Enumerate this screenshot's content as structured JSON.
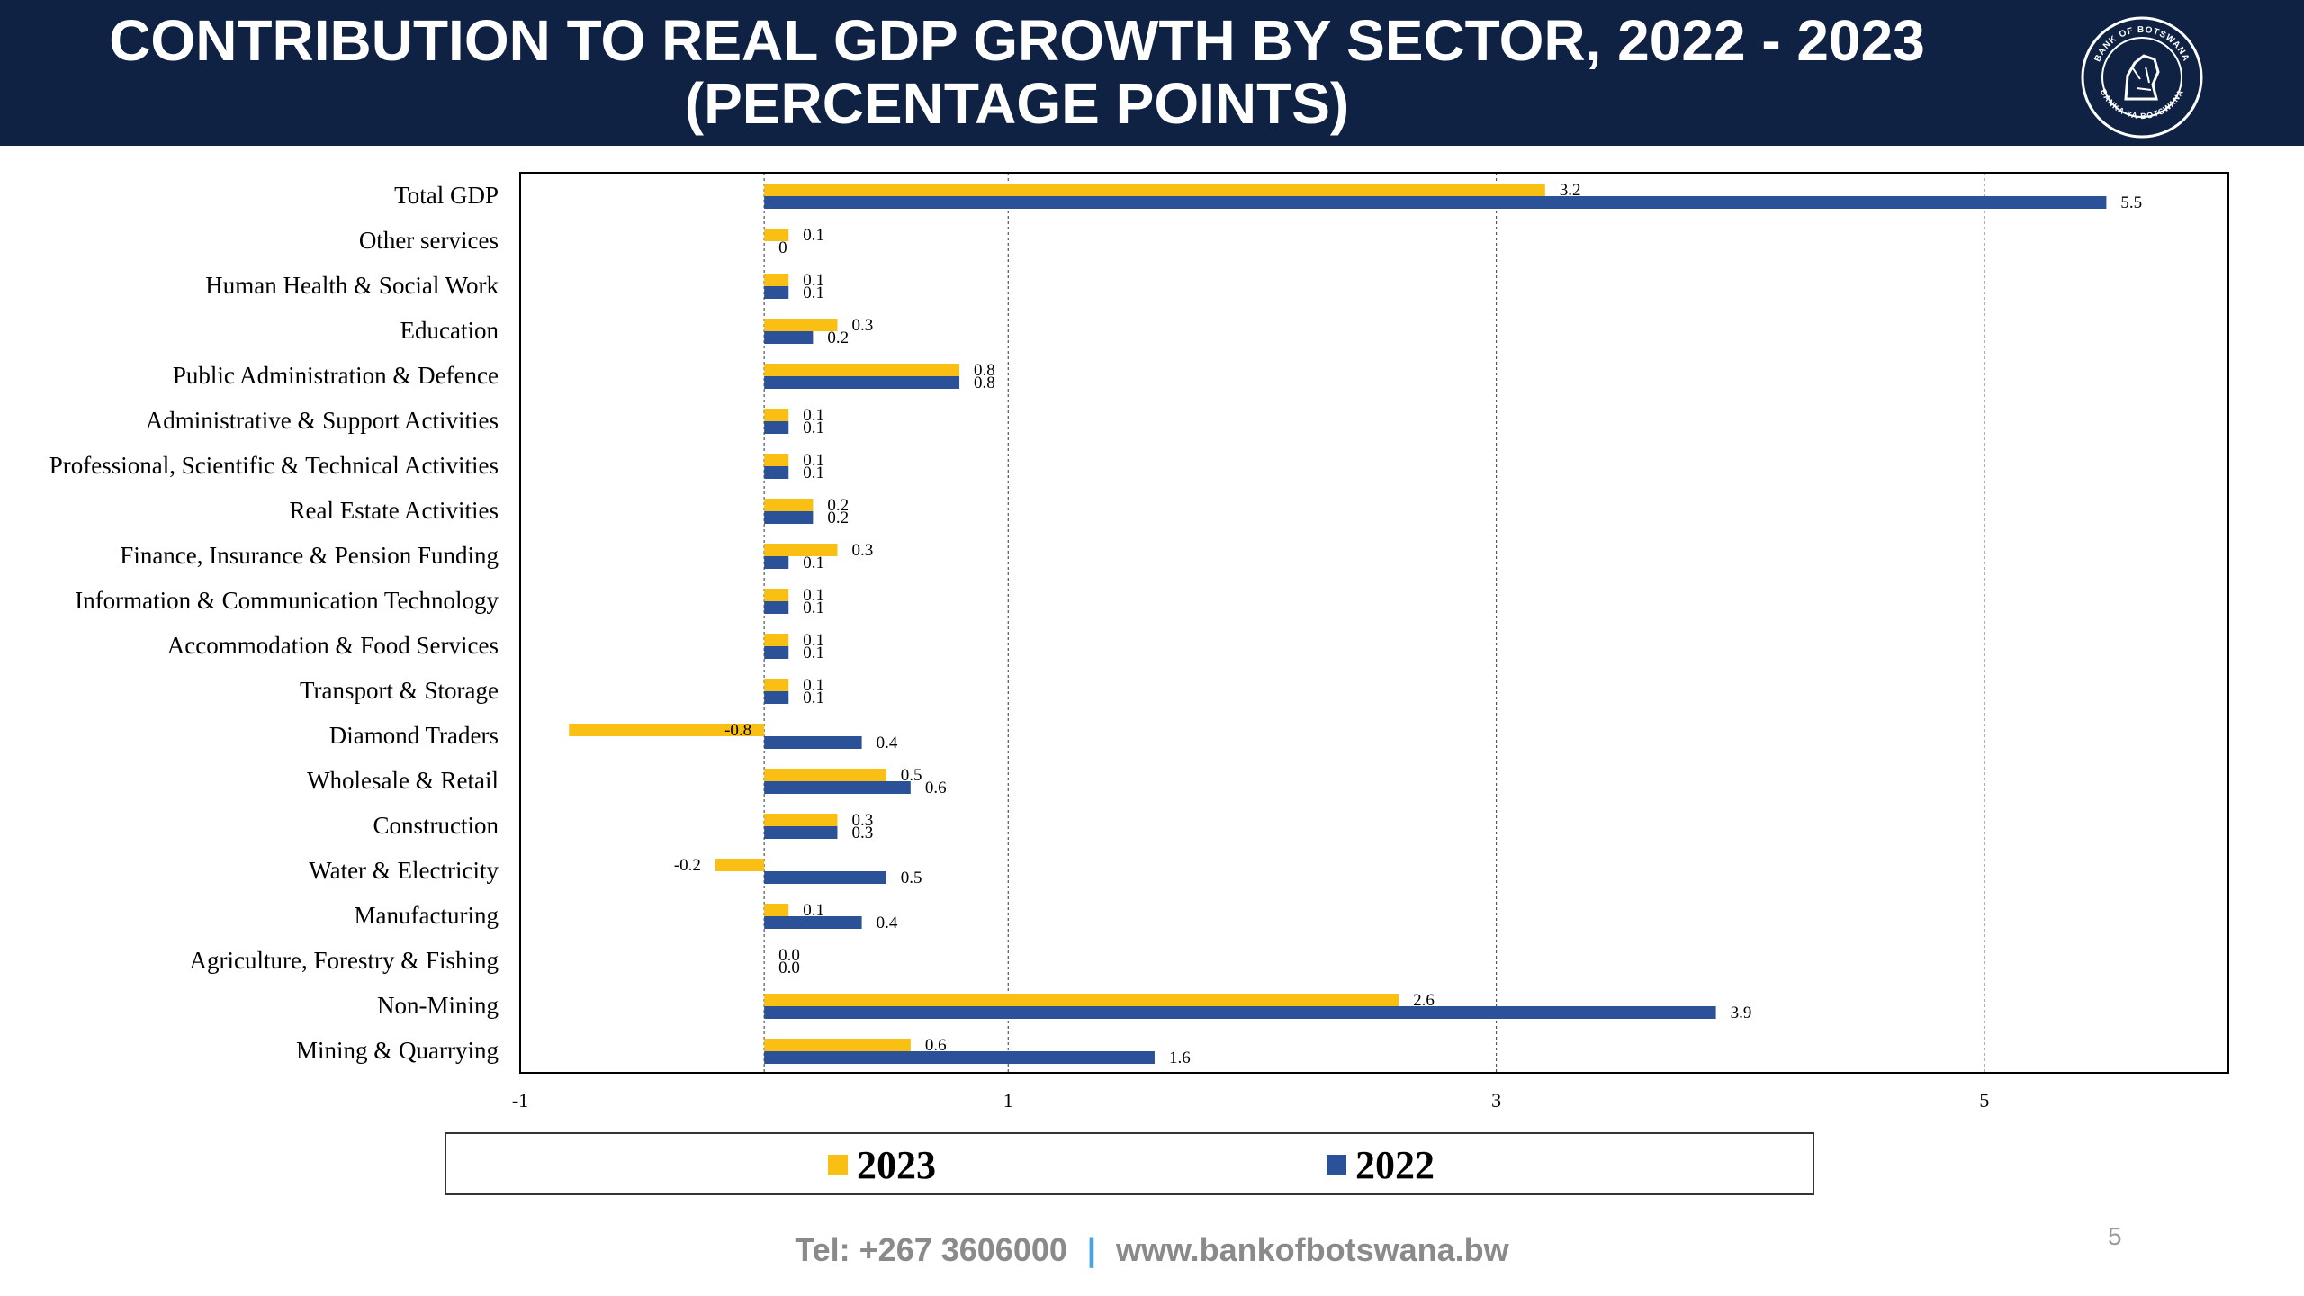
{
  "slide": {
    "title_line1": "CONTRIBUTION TO REAL GDP GROWTH BY SECTOR, 2022  - 2023",
    "title_line2": "(PERCENTAGE POINTS)",
    "logo_text_top": "BANK OF BOTSWANA",
    "logo_text_bottom": "BANKA YA BOTSWANA",
    "footer_tel": "Tel: +267 3606000",
    "footer_sep": "|",
    "footer_web": "www.bankofbotswana.bw",
    "page_number": "5"
  },
  "colors": {
    "header_bg": "#0f2244",
    "series_2023": "#f9bf12",
    "series_2022": "#2b5298"
  },
  "chart_data": {
    "type": "bar",
    "orientation": "horizontal",
    "categories": [
      "Total GDP",
      "Other services",
      "Human Health & Social Work",
      "Education",
      "Public Administration & Defence",
      "Administrative & Support Activities",
      "Professional, Scientific & Technical Activities",
      "Real Estate Activities",
      "Finance, Insurance & Pension Funding",
      "Information & Communication Technology",
      "Accommodation & Food Services",
      "Transport & Storage",
      "Diamond Traders",
      "Wholesale & Retail",
      "Construction",
      "Water & Electricity",
      "Manufacturing",
      "Agriculture, Forestry & Fishing",
      "Non-Mining",
      "Mining & Quarrying"
    ],
    "series": [
      {
        "name": "2023",
        "values": [
          3.2,
          0.1,
          0.1,
          0.3,
          0.8,
          0.1,
          0.1,
          0.2,
          0.3,
          0.1,
          0.1,
          0.1,
          -0.8,
          0.5,
          0.3,
          -0.2,
          0.1,
          0.0,
          2.6,
          0.6
        ],
        "labels": [
          "3.2",
          "0.1",
          "0.1",
          "0.3",
          "0.8",
          "0.1",
          "0.1",
          "0.2",
          "0.3",
          "0.1",
          "0.1",
          "0.1",
          "-0.8",
          "0.5",
          "0.3",
          "-0.2",
          "0.1",
          "0.0",
          "2.6",
          "0.6"
        ]
      },
      {
        "name": "2022",
        "values": [
          5.5,
          0,
          0.1,
          0.2,
          0.8,
          0.1,
          0.1,
          0.2,
          0.1,
          0.1,
          0.1,
          0.1,
          0.4,
          0.6,
          0.3,
          0.5,
          0.4,
          0.0,
          3.9,
          1.6
        ],
        "labels": [
          "5.5",
          "0",
          "0.1",
          "0.2",
          "0.8",
          "0.1",
          "0.1",
          "0.2",
          "0.1",
          "0.1",
          "0.1",
          "0.1",
          "0.4",
          "0.6",
          "0.3",
          "0.5",
          "0.4",
          "0.0",
          "3.9",
          "1.6"
        ]
      }
    ],
    "x_ticks": [
      "-1",
      "1",
      "3",
      "5"
    ],
    "xlim": [
      -1,
      6
    ],
    "grid": "vertical dashed",
    "legend_position": "bottom",
    "title": "CONTRIBUTION TO REAL GDP GROWTH BY SECTOR, 2022  - 2023 (PERCENTAGE POINTS)",
    "xlabel": "",
    "ylabel": ""
  }
}
